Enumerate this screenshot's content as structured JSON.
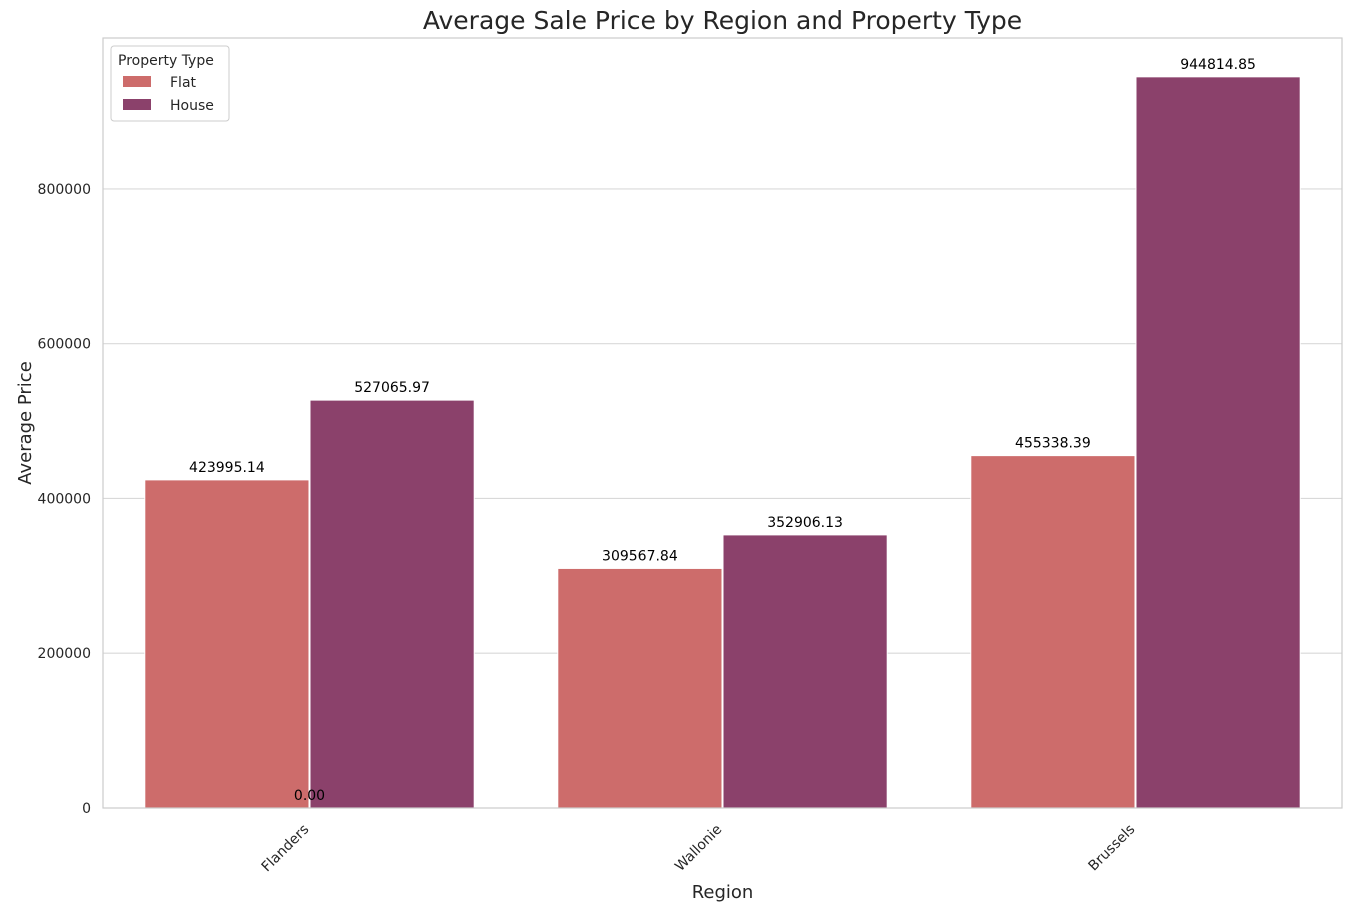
{
  "chart_data": {
    "type": "bar",
    "title": "Average Sale Price by Region and Property Type",
    "xlabel": "Region",
    "ylabel": "Average Price",
    "categories": [
      "Flanders",
      "Wallonie",
      "Brussels"
    ],
    "series": [
      {
        "name": "Flat",
        "color": "#cd6c6b",
        "values": [
          423995.14,
          309567.84,
          455338.39
        ]
      },
      {
        "name": "House",
        "color": "#8b416b",
        "values": [
          527065.97,
          352906.13,
          944814.85
        ]
      }
    ],
    "value_labels": [
      [
        "423995.14",
        "309567.84",
        "455338.39"
      ],
      [
        "527065.97",
        "352906.13",
        "944814.85"
      ]
    ],
    "extra_label": {
      "text": "0.00",
      "category": "Flanders",
      "value": 0
    },
    "ylim": [
      0,
      995000
    ],
    "yticks": [
      0,
      200000,
      400000,
      600000,
      800000
    ],
    "ytick_labels": [
      "0",
      "200000",
      "400000",
      "600000",
      "800000"
    ],
    "grid": "y",
    "legend": {
      "title": "Property Type",
      "placement": "top-left"
    }
  }
}
